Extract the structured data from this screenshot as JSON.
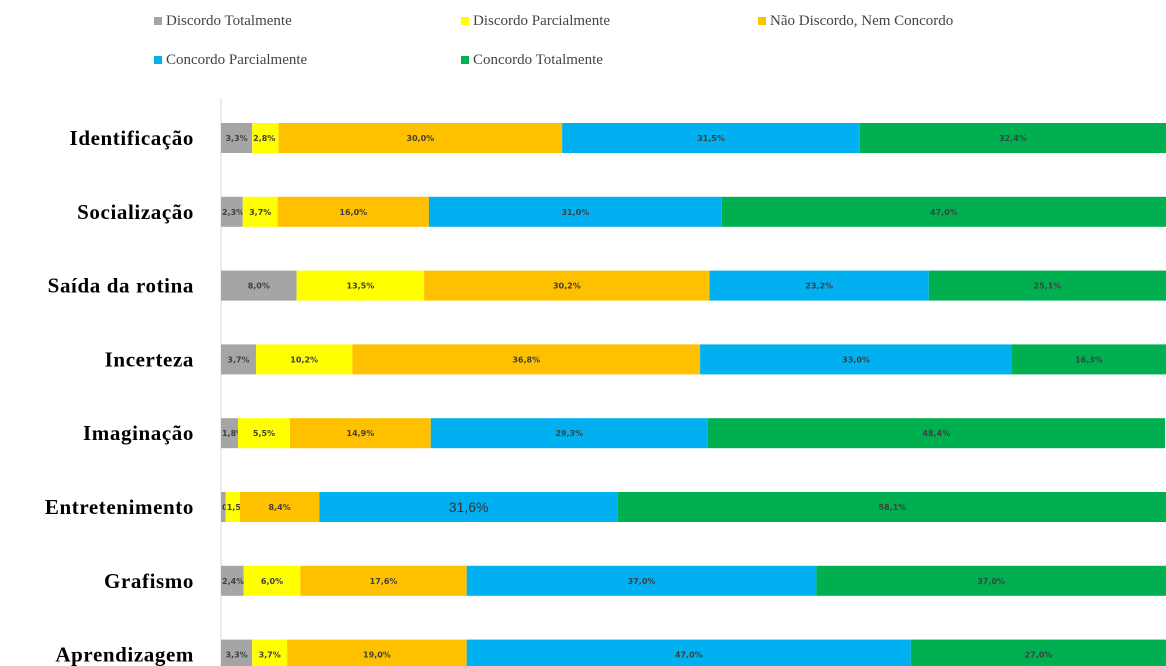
{
  "chart_data": {
    "type": "bar",
    "stacked": true,
    "orientation": "horizontal",
    "title": "",
    "xlabel": "",
    "ylabel": "",
    "xlim": [
      0,
      100
    ],
    "grid": false,
    "legend": "top",
    "categories": [
      "Identificação",
      "Socialização",
      "Saída da rotina",
      "Incerteza",
      "Imaginação",
      "Entretenimento",
      "Grafismo",
      "Aprendizagem"
    ],
    "series": [
      {
        "name": "Discordo Totalmente",
        "color": "#a5a5a5",
        "values": [
          3.3,
          2.3,
          8.0,
          3.7,
          1.8,
          0.5,
          2.4,
          3.3
        ],
        "labels": [
          "3,3%",
          "2,3%",
          "8,0%",
          "3,7%",
          "1,8%",
          "0,5%",
          "2,4%",
          "3,3%"
        ]
      },
      {
        "name": "Discordo Parcialmente",
        "color": "#ffff00",
        "values": [
          2.8,
          3.7,
          13.5,
          10.2,
          5.5,
          1.5,
          6.0,
          3.7
        ],
        "labels": [
          "2,8%",
          "3,7%",
          "13,5%",
          "10,2%",
          "5,5%",
          "1,5%",
          "6,0%",
          "3,7%"
        ]
      },
      {
        "name": "Não Discordo, Nem Concordo",
        "color": "#ffc000",
        "values": [
          30.0,
          16.0,
          30.2,
          36.8,
          14.9,
          8.4,
          17.6,
          19.0
        ],
        "labels": [
          "30,0%",
          "16,0%",
          "30,2%",
          "36,8%",
          "14,9%",
          "8,4%",
          "17,6%",
          "19,0%"
        ]
      },
      {
        "name": "Concordo Parcialmente",
        "color": "#00b0f0",
        "values": [
          31.5,
          31.0,
          23.2,
          33.0,
          29.3,
          31.6,
          37.0,
          47.0
        ],
        "labels": [
          "31,5%",
          "31,0%",
          "23,2%",
          "33,0%",
          "29,3%",
          "31,6%",
          "37,0%",
          "47,0%"
        ]
      },
      {
        "name": "Concordo Totalmente",
        "color": "#00b050",
        "values": [
          32.4,
          47.0,
          25.1,
          16.3,
          48.4,
          58.1,
          37.0,
          27.0
        ],
        "labels": [
          "32,4%",
          "47,0%",
          "25,1%",
          "16,3%",
          "48,4%",
          "58,1%",
          "37,0%",
          "27,0%"
        ]
      }
    ]
  }
}
